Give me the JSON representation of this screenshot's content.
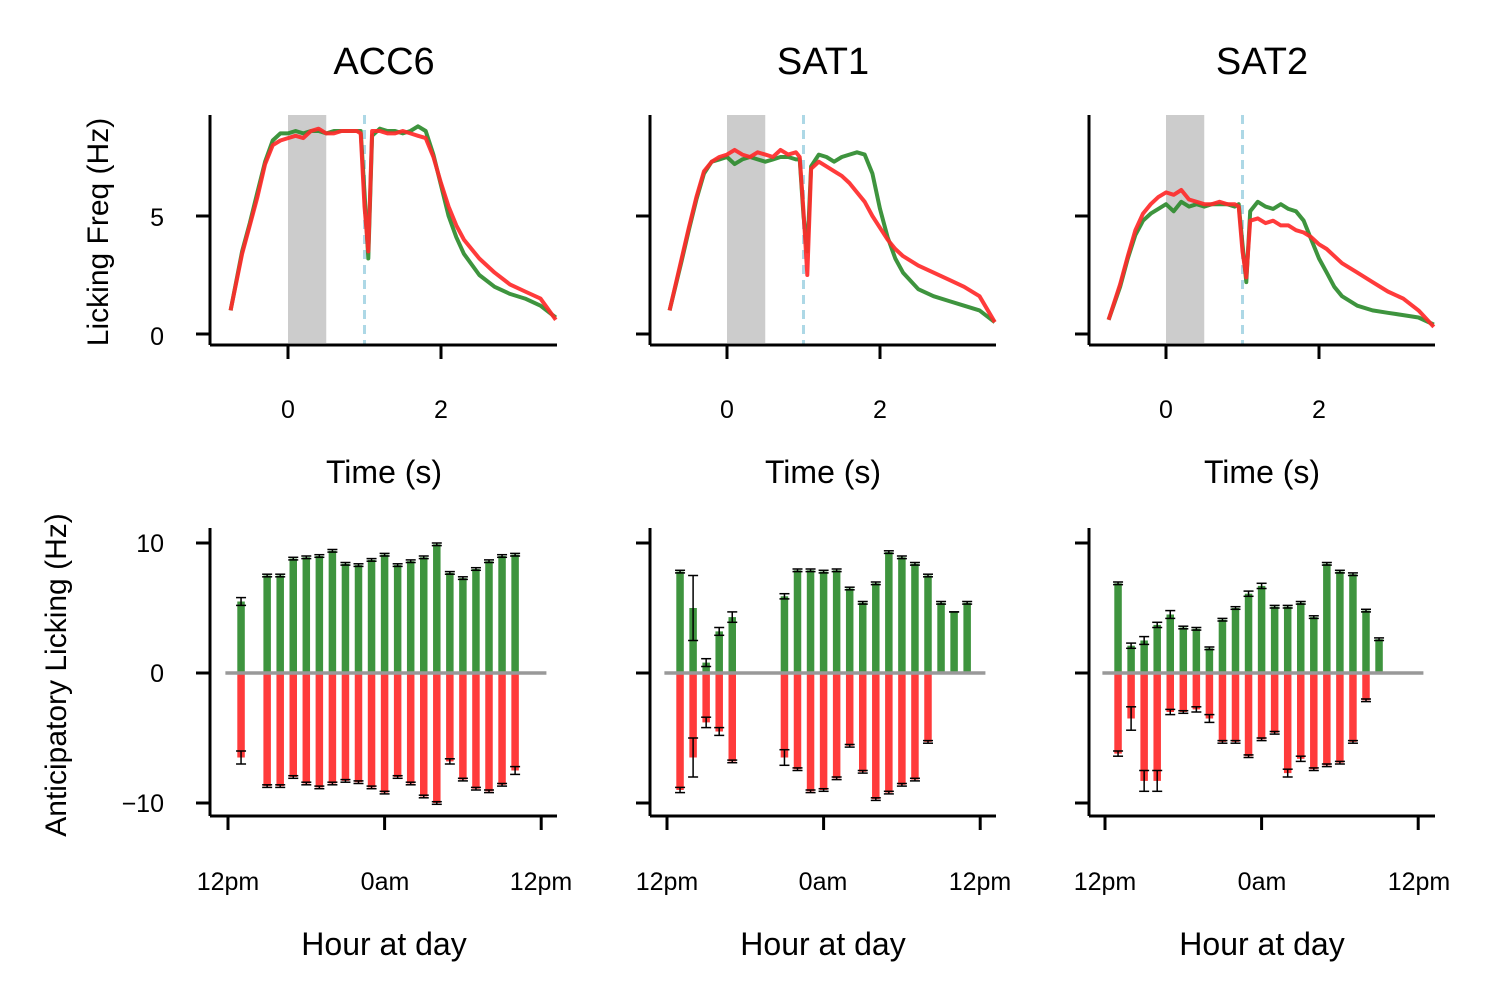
{
  "colors": {
    "go": "#2e8b2e",
    "nogo": "#ff2a2a",
    "stim": "#cccccc",
    "reward": "#add8e6",
    "zero": "#999999",
    "err": "#000000"
  },
  "shared": {
    "ylabel_top": "Licking Freq (Hz)",
    "ylabel_bottom": "Anticipatory Licking (Hz)",
    "xlabel_top": "Time (s)",
    "xlabel_bottom": "Hour at day",
    "top_xticks": [
      "0",
      "2"
    ],
    "top_yticks": [
      "0",
      "5"
    ],
    "bottom_xticks": [
      "12pm",
      "0am",
      "12pm"
    ],
    "bottom_yticks": [
      "10",
      "0",
      "−10"
    ]
  },
  "chart_data": [
    {
      "panel": "ACC6",
      "type": "line",
      "title": "ACC6",
      "xlabel": "Time (s)",
      "ylabel": "Licking Freq (Hz)",
      "xlim": [
        -1.0,
        3.5
      ],
      "ylim": [
        -0.4,
        9.3
      ],
      "shaded_interval": [
        0,
        0.5
      ],
      "reward_line_x": 1.0,
      "series": [
        {
          "color": "go",
          "x": [
            -0.75,
            -0.6,
            -0.5,
            -0.4,
            -0.3,
            -0.2,
            -0.1,
            0,
            0.1,
            0.2,
            0.3,
            0.4,
            0.5,
            0.6,
            0.7,
            0.8,
            0.9,
            0.95,
            1.0,
            1.05,
            1.1,
            1.2,
            1.3,
            1.4,
            1.5,
            1.6,
            1.7,
            1.8,
            1.9,
            2.0,
            2.1,
            2.2,
            2.3,
            2.5,
            2.7,
            2.9,
            3.1,
            3.3,
            3.5
          ],
          "y": [
            1.0,
            3.5,
            4.7,
            6.0,
            7.3,
            8.2,
            8.5,
            8.5,
            8.6,
            8.5,
            8.6,
            8.6,
            8.5,
            8.6,
            8.6,
            8.6,
            8.6,
            8.6,
            6.0,
            3.2,
            8.4,
            8.7,
            8.6,
            8.6,
            8.5,
            8.6,
            8.8,
            8.6,
            7.6,
            6.3,
            5.0,
            4.1,
            3.4,
            2.5,
            2.0,
            1.7,
            1.5,
            1.2,
            0.7
          ]
        },
        {
          "color": "nogo",
          "x": [
            -0.75,
            -0.6,
            -0.5,
            -0.4,
            -0.3,
            -0.2,
            -0.1,
            0,
            0.1,
            0.2,
            0.3,
            0.4,
            0.5,
            0.6,
            0.7,
            0.8,
            0.9,
            0.95,
            1.0,
            1.05,
            1.1,
            1.2,
            1.3,
            1.4,
            1.5,
            1.6,
            1.7,
            1.8,
            1.9,
            2.0,
            2.1,
            2.2,
            2.3,
            2.5,
            2.7,
            2.9,
            3.1,
            3.3,
            3.5
          ],
          "y": [
            1.0,
            3.4,
            4.6,
            5.8,
            7.2,
            8.0,
            8.2,
            8.3,
            8.4,
            8.3,
            8.6,
            8.7,
            8.5,
            8.5,
            8.6,
            8.6,
            8.6,
            8.5,
            5.4,
            3.5,
            8.6,
            8.6,
            8.5,
            8.5,
            8.6,
            8.5,
            8.4,
            8.3,
            7.5,
            6.4,
            5.4,
            4.6,
            4.0,
            3.2,
            2.6,
            2.1,
            1.8,
            1.5,
            0.6
          ]
        }
      ]
    },
    {
      "panel": "SAT1",
      "type": "line",
      "title": "SAT1",
      "xlabel": "Time (s)",
      "ylabel": "",
      "xlim": [
        -1.0,
        3.5
      ],
      "ylim": [
        -0.4,
        9.3
      ],
      "shaded_interval": [
        0,
        0.5
      ],
      "reward_line_x": 1.0,
      "series": [
        {
          "color": "go",
          "x": [
            -0.75,
            -0.6,
            -0.5,
            -0.4,
            -0.3,
            -0.2,
            -0.1,
            0,
            0.1,
            0.2,
            0.3,
            0.4,
            0.5,
            0.6,
            0.7,
            0.8,
            0.9,
            0.95,
            1.0,
            1.05,
            1.1,
            1.2,
            1.3,
            1.4,
            1.5,
            1.6,
            1.7,
            1.8,
            1.9,
            2.0,
            2.1,
            2.2,
            2.3,
            2.5,
            2.7,
            2.9,
            3.1,
            3.3,
            3.5
          ],
          "y": [
            1.0,
            3.0,
            4.4,
            5.7,
            6.8,
            7.3,
            7.4,
            7.5,
            7.2,
            7.4,
            7.5,
            7.4,
            7.3,
            7.4,
            7.5,
            7.5,
            7.4,
            7.4,
            5.0,
            3.5,
            7.1,
            7.6,
            7.5,
            7.3,
            7.5,
            7.6,
            7.7,
            7.6,
            6.8,
            5.3,
            4.1,
            3.2,
            2.6,
            1.9,
            1.6,
            1.4,
            1.2,
            1.0,
            0.5
          ]
        },
        {
          "color": "nogo",
          "x": [
            -0.75,
            -0.6,
            -0.5,
            -0.4,
            -0.3,
            -0.2,
            -0.1,
            0,
            0.1,
            0.2,
            0.3,
            0.4,
            0.5,
            0.6,
            0.7,
            0.8,
            0.9,
            0.95,
            1.0,
            1.05,
            1.1,
            1.2,
            1.3,
            1.4,
            1.5,
            1.6,
            1.7,
            1.8,
            1.9,
            2.0,
            2.1,
            2.2,
            2.3,
            2.5,
            2.7,
            2.9,
            3.1,
            3.3,
            3.5
          ],
          "y": [
            1.0,
            3.1,
            4.5,
            5.8,
            6.9,
            7.3,
            7.5,
            7.6,
            7.8,
            7.6,
            7.5,
            7.7,
            7.6,
            7.5,
            7.8,
            7.6,
            7.7,
            7.5,
            5.2,
            2.5,
            7.0,
            7.3,
            7.1,
            6.9,
            6.7,
            6.4,
            6.0,
            5.6,
            5.0,
            4.5,
            4.0,
            3.6,
            3.3,
            2.9,
            2.6,
            2.3,
            2.0,
            1.6,
            0.5
          ]
        }
      ]
    },
    {
      "panel": "SAT2",
      "type": "line",
      "title": "SAT2",
      "xlabel": "Time (s)",
      "ylabel": "",
      "xlim": [
        -1.0,
        3.5
      ],
      "ylim": [
        -0.4,
        9.3
      ],
      "shaded_interval": [
        0,
        0.5
      ],
      "reward_line_x": 1.0,
      "series": [
        {
          "color": "go",
          "x": [
            -0.75,
            -0.6,
            -0.5,
            -0.4,
            -0.3,
            -0.2,
            -0.1,
            0,
            0.1,
            0.2,
            0.3,
            0.4,
            0.5,
            0.6,
            0.7,
            0.8,
            0.9,
            0.95,
            1.0,
            1.05,
            1.1,
            1.2,
            1.3,
            1.4,
            1.5,
            1.6,
            1.7,
            1.8,
            1.9,
            2.0,
            2.1,
            2.2,
            2.3,
            2.5,
            2.7,
            2.9,
            3.1,
            3.3,
            3.5
          ],
          "y": [
            0.6,
            2.0,
            3.2,
            4.2,
            4.8,
            5.1,
            5.3,
            5.5,
            5.2,
            5.6,
            5.4,
            5.5,
            5.4,
            5.5,
            5.5,
            5.5,
            5.4,
            5.5,
            3.8,
            2.2,
            5.2,
            5.6,
            5.4,
            5.3,
            5.5,
            5.3,
            5.2,
            4.8,
            4.0,
            3.2,
            2.6,
            2.0,
            1.6,
            1.2,
            1.0,
            0.9,
            0.8,
            0.7,
            0.4
          ]
        },
        {
          "color": "nogo",
          "x": [
            -0.75,
            -0.6,
            -0.5,
            -0.4,
            -0.3,
            -0.2,
            -0.1,
            0,
            0.1,
            0.2,
            0.3,
            0.4,
            0.5,
            0.6,
            0.7,
            0.8,
            0.9,
            0.95,
            1.0,
            1.05,
            1.1,
            1.2,
            1.3,
            1.4,
            1.5,
            1.6,
            1.7,
            1.8,
            1.9,
            2.0,
            2.1,
            2.2,
            2.3,
            2.5,
            2.7,
            2.9,
            3.1,
            3.3,
            3.5
          ],
          "y": [
            0.6,
            2.1,
            3.3,
            4.4,
            5.1,
            5.5,
            5.8,
            6.0,
            5.9,
            6.1,
            5.7,
            5.6,
            5.5,
            5.5,
            5.6,
            5.5,
            5.5,
            5.4,
            3.5,
            2.4,
            4.8,
            4.9,
            4.7,
            4.8,
            4.6,
            4.6,
            4.4,
            4.3,
            4.1,
            3.8,
            3.6,
            3.3,
            3.0,
            2.6,
            2.2,
            1.8,
            1.5,
            1.0,
            0.3
          ]
        }
      ]
    },
    {
      "panel": "ACC6",
      "type": "bar",
      "xlabel": "Hour at day",
      "ylabel": "Anticipatory Licking (Hz)",
      "xlim": [
        -0.7,
        25.4
      ],
      "ylim": [
        -11,
        11.2
      ],
      "xticks_at": [
        0,
        12,
        24
      ],
      "hours": [
        1,
        2,
        3,
        4,
        5,
        6,
        7,
        8,
        9,
        10,
        11,
        12,
        13,
        14,
        15,
        16,
        17,
        18,
        19,
        20,
        21,
        22,
        23
      ],
      "go": [
        5.5,
        null,
        7.5,
        7.5,
        8.8,
        8.9,
        9.0,
        9.4,
        8.4,
        8.3,
        8.7,
        9.1,
        8.3,
        8.6,
        8.9,
        9.9,
        7.7,
        7.3,
        8.0,
        8.6,
        9.0,
        9.1,
        null
      ],
      "go_err": [
        0.3,
        0,
        0.1,
        0.1,
        0.1,
        0.1,
        0.1,
        0.1,
        0.1,
        0.1,
        0.1,
        0.1,
        0.1,
        0.1,
        0.1,
        0.1,
        0.1,
        0.1,
        0.1,
        0.1,
        0.1,
        0.1,
        0
      ],
      "nogo": [
        -6.5,
        null,
        -8.7,
        -8.7,
        -8.0,
        -8.5,
        -8.8,
        -8.5,
        -8.3,
        -8.4,
        -8.8,
        -9.2,
        -8.0,
        -8.5,
        -9.5,
        -10.0,
        -6.8,
        -8.2,
        -8.9,
        -9.1,
        -8.6,
        -7.5,
        null
      ],
      "nogo_err": [
        0.5,
        0,
        0.1,
        0.1,
        0.1,
        0.1,
        0.1,
        0.1,
        0.1,
        0.1,
        0.1,
        0.1,
        0.1,
        0.1,
        0.1,
        0.1,
        0.2,
        0.1,
        0.1,
        0.1,
        0.1,
        0.3,
        0
      ]
    },
    {
      "panel": "SAT1",
      "type": "bar",
      "xlabel": "Hour at day",
      "ylabel": "",
      "xlim": [
        -0.7,
        25.4
      ],
      "ylim": [
        -11,
        11.2
      ],
      "xticks_at": [
        0,
        12,
        24
      ],
      "hours": [
        1,
        2,
        3,
        4,
        5,
        6,
        7,
        8,
        9,
        10,
        11,
        12,
        13,
        14,
        15,
        16,
        17,
        18,
        19,
        20,
        21,
        22,
        23
      ],
      "go": [
        7.8,
        5.0,
        0.8,
        3.2,
        4.3,
        null,
        null,
        null,
        5.9,
        7.9,
        7.9,
        7.8,
        7.9,
        6.5,
        5.4,
        6.9,
        9.3,
        8.9,
        8.4,
        7.5,
        5.4,
        4.7,
        5.4
      ],
      "go_err": [
        0.1,
        2.5,
        0.3,
        0.3,
        0.4,
        0,
        0,
        0,
        0.2,
        0.1,
        0.1,
        0.1,
        0.1,
        0.1,
        0.1,
        0.1,
        0.1,
        0.1,
        0.1,
        0.1,
        0.1,
        0,
        0.1
      ],
      "nogo": [
        -9.0,
        -6.5,
        -3.8,
        -4.5,
        -6.8,
        null,
        null,
        null,
        -6.5,
        -7.4,
        -9.1,
        -9.0,
        -8.1,
        -5.6,
        -7.6,
        -9.7,
        -9.2,
        -8.6,
        -8.2,
        -5.3,
        null,
        null,
        null
      ],
      "nogo_err": [
        0.2,
        1.5,
        0.4,
        0.3,
        0.1,
        0,
        0,
        0,
        0.6,
        0.1,
        0.1,
        0.1,
        0.1,
        0.1,
        0.1,
        0.1,
        0.1,
        0.1,
        0.1,
        0.1,
        0,
        0,
        0
      ]
    },
    {
      "panel": "SAT2",
      "type": "bar",
      "xlabel": "Hour at day",
      "ylabel": "",
      "xlim": [
        -0.7,
        25.4
      ],
      "ylim": [
        -11,
        11.2
      ],
      "xticks_at": [
        0,
        12,
        24
      ],
      "hours": [
        1,
        2,
        3,
        4,
        5,
        6,
        7,
        8,
        9,
        10,
        11,
        12,
        13,
        14,
        15,
        16,
        17,
        18,
        19,
        20,
        21,
        22,
        23
      ],
      "go": [
        6.9,
        2.1,
        2.5,
        3.7,
        4.5,
        3.5,
        3.4,
        1.9,
        4.1,
        5.0,
        6.1,
        6.7,
        5.1,
        5.1,
        5.4,
        4.3,
        8.4,
        7.8,
        7.6,
        4.8,
        2.6,
        null,
        null
      ],
      "go_err": [
        0.1,
        0.2,
        0.3,
        0.2,
        0.3,
        0.1,
        0.1,
        0.1,
        0.1,
        0.1,
        0.2,
        0.2,
        0.1,
        0.1,
        0.1,
        0.1,
        0.1,
        0.1,
        0.1,
        0.1,
        0.1,
        0,
        0
      ],
      "nogo": [
        -6.2,
        -3.5,
        -8.3,
        -8.3,
        -3.0,
        -3.0,
        -2.8,
        -3.5,
        -5.3,
        -5.3,
        -6.4,
        -5.1,
        -4.6,
        -7.7,
        -6.6,
        -7.4,
        -7.1,
        -6.9,
        -5.3,
        -2.1,
        null,
        null,
        null
      ],
      "nogo_err": [
        0.2,
        0.9,
        0.8,
        0.8,
        0.2,
        0.1,
        0.2,
        0.3,
        0.1,
        0.1,
        0.1,
        0.1,
        0.1,
        0.3,
        0.2,
        0.1,
        0.1,
        0.1,
        0.1,
        0.1,
        0,
        0,
        0
      ]
    }
  ]
}
